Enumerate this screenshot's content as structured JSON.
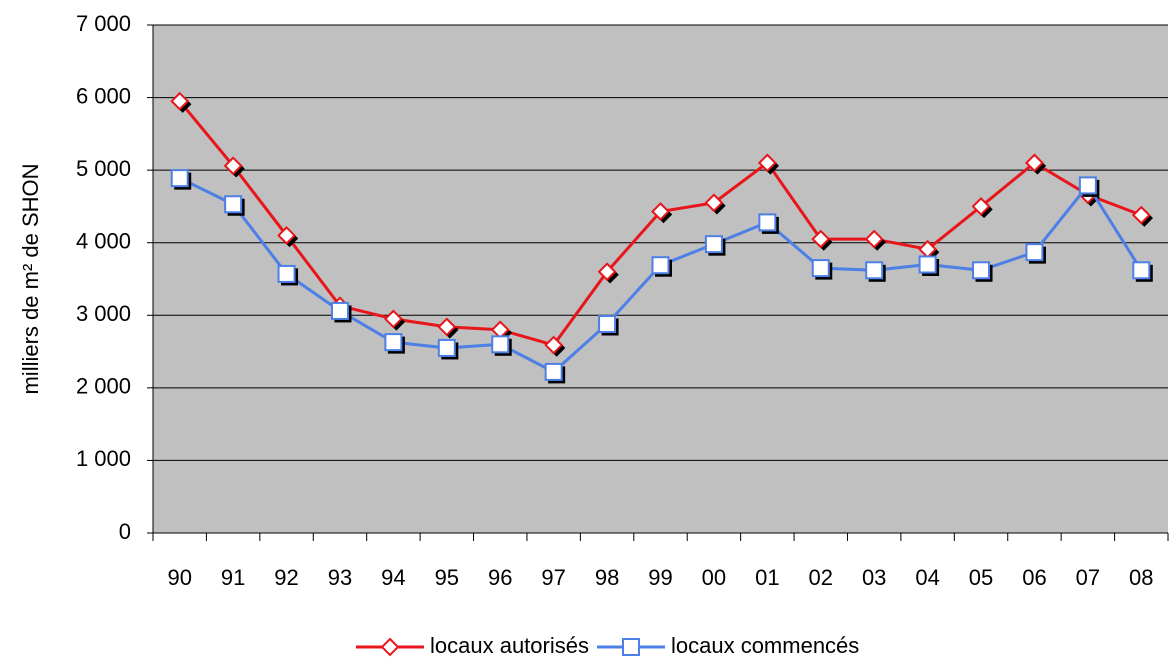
{
  "chart_data": {
    "type": "line",
    "y_label": "milliers de m² de SHON",
    "categories": [
      "90",
      "91",
      "92",
      "93",
      "94",
      "95",
      "96",
      "97",
      "98",
      "99",
      "00",
      "01",
      "02",
      "03",
      "04",
      "05",
      "06",
      "07",
      "08"
    ],
    "series": [
      {
        "name": "locaux autorisés",
        "color": "#e8151b",
        "marker": "diamond",
        "values": [
          5950,
          5060,
          4100,
          3130,
          2950,
          2840,
          2800,
          2590,
          3600,
          4430,
          4550,
          5100,
          4050,
          4050,
          3910,
          4500,
          5100,
          4660,
          4380
        ]
      },
      {
        "name": "locaux commencés",
        "color": "#4d7fe6",
        "marker": "square",
        "values": [
          4890,
          4530,
          3570,
          3060,
          2630,
          2550,
          2600,
          2220,
          2880,
          3690,
          3980,
          4280,
          3650,
          3620,
          3700,
          3620,
          3870,
          4790,
          3620
        ]
      }
    ],
    "ylim": [
      0,
      7000
    ],
    "yticks": [
      {
        "value": 0,
        "label": "0"
      },
      {
        "value": 1000,
        "label": "1 000"
      },
      {
        "value": 2000,
        "label": "2 000"
      },
      {
        "value": 3000,
        "label": "3 000"
      },
      {
        "value": 4000,
        "label": "4 000"
      },
      {
        "value": 5000,
        "label": "5 000"
      },
      {
        "value": 6000,
        "label": "6 000"
      },
      {
        "value": 7000,
        "label": "7 000"
      }
    ],
    "grid": true,
    "plot_background": "#c0c0c0",
    "legend": "bottom"
  }
}
